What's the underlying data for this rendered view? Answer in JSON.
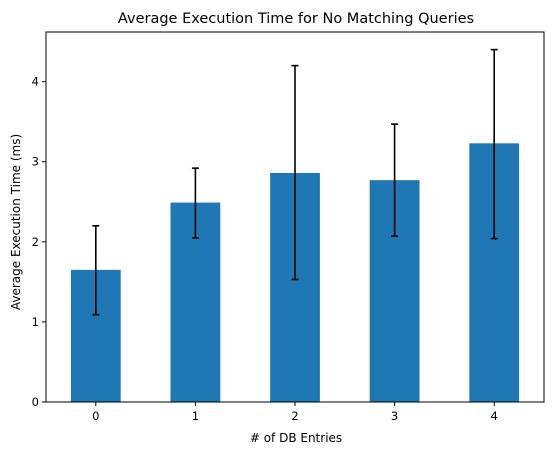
{
  "chart_data": {
    "type": "bar",
    "title": "Average Execution Time for No Matching Queries",
    "xlabel": "# of DB Entries",
    "ylabel": "Average Execution Time (ms)",
    "categories": [
      "0",
      "1",
      "2",
      "3",
      "4"
    ],
    "values": [
      1.65,
      2.49,
      2.86,
      2.77,
      3.23
    ],
    "error_low": [
      1.09,
      2.05,
      1.53,
      2.07,
      2.04
    ],
    "error_high": [
      2.2,
      2.92,
      4.2,
      3.47,
      4.4
    ],
    "ylim": [
      0,
      4.62
    ],
    "yticks": [
      0,
      1,
      2,
      3,
      4
    ],
    "bar_color": "#1f77b4",
    "error_color": "#000000",
    "grid": false,
    "legend": "none"
  }
}
